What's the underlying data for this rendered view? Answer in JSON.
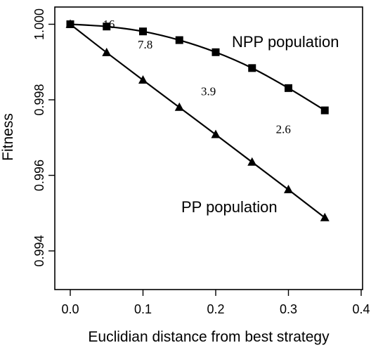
{
  "chart_data": {
    "type": "line",
    "xlabel": "Euclidian distance from best strategy",
    "ylabel": "Fitness",
    "xlim": [
      0.0,
      0.4
    ],
    "ylim": [
      0.9933,
      1.0005
    ],
    "x_ticks": [
      "0.0",
      "0.1",
      "0.2",
      "0.3",
      "0.4"
    ],
    "x_tick_values": [
      0.0,
      0.1,
      0.2,
      0.3,
      0.4
    ],
    "y_ticks": [
      "0.994",
      "0.996",
      "0.998",
      "1.000"
    ],
    "y_tick_values": [
      0.994,
      0.996,
      0.998,
      1.0
    ],
    "grid": false,
    "series": [
      {
        "name": "NPP population",
        "marker": "square",
        "x": [
          0.0,
          0.05,
          0.1,
          0.15,
          0.2,
          0.25,
          0.3,
          0.35
        ],
        "y": [
          1.0,
          0.99994,
          0.99981,
          0.99958,
          0.99926,
          0.99884,
          0.99831,
          0.99772
        ]
      },
      {
        "name": "PP population",
        "marker": "triangle",
        "x": [
          0.0,
          0.05,
          0.1,
          0.15,
          0.2,
          0.25,
          0.3,
          0.35
        ],
        "y": [
          1.0,
          0.99925,
          0.99852,
          0.9978,
          0.99708,
          0.99635,
          0.99562,
          0.99488
        ]
      }
    ],
    "annotations": [
      {
        "text": "16",
        "x": 0.053,
        "y": 0.9999
      },
      {
        "text": "7.8",
        "x": 0.103,
        "y": 0.99936
      },
      {
        "text": "3.9",
        "x": 0.19,
        "y": 0.99812
      },
      {
        "text": "2.6",
        "x": 0.293,
        "y": 0.99712
      }
    ]
  }
}
